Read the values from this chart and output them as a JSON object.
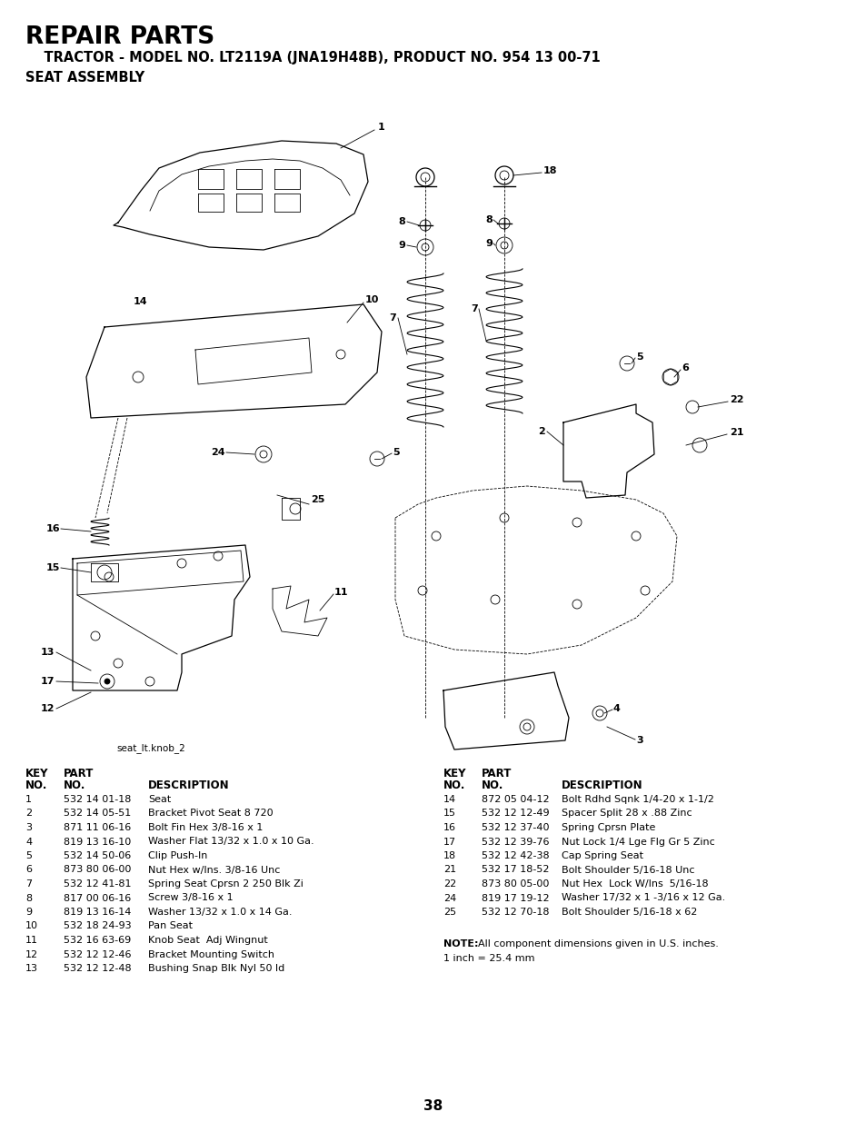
{
  "title_line1": "REPAIR PARTS",
  "title_line2": "    TRACTOR - MODEL NO. LT2119A (JNA19H48B), PRODUCT NO. 954 13 00-71",
  "title_line3": "SEAT ASSEMBLY",
  "image_label": "seat_lt.knob_2",
  "parts_left": [
    [
      "1",
      "532 14 01-18",
      "Seat"
    ],
    [
      "2",
      "532 14 05-51",
      "Bracket Pivot Seat 8 720"
    ],
    [
      "3",
      "871 11 06-16",
      "Bolt Fin Hex 3/8-16 x 1"
    ],
    [
      "4",
      "819 13 16-10",
      "Washer Flat 13/32 x 1.0 x 10 Ga."
    ],
    [
      "5",
      "532 14 50-06",
      "Clip Push-In"
    ],
    [
      "6",
      "873 80 06-00",
      "Nut Hex w/Ins. 3/8-16 Unc"
    ],
    [
      "7",
      "532 12 41-81",
      "Spring Seat Cprsn 2 250 Blk Zi"
    ],
    [
      "8",
      "817 00 06-16",
      "Screw 3/8-16 x 1"
    ],
    [
      "9",
      "819 13 16-14",
      "Washer 13/32 x 1.0 x 14 Ga."
    ],
    [
      "10",
      "532 18 24-93",
      "Pan Seat"
    ],
    [
      "11",
      "532 16 63-69",
      "Knob Seat  Adj Wingnut"
    ],
    [
      "12",
      "532 12 12-46",
      "Bracket Mounting Switch"
    ],
    [
      "13",
      "532 12 12-48",
      "Bushing Snap Blk Nyl 50 ld"
    ]
  ],
  "parts_right": [
    [
      "14",
      "872 05 04-12",
      "Bolt Rdhd Sqnk 1/4-20 x 1-1/2"
    ],
    [
      "15",
      "532 12 12-49",
      "Spacer Split 28 x .88 Zinc"
    ],
    [
      "16",
      "532 12 37-40",
      "Spring Cprsn Plate"
    ],
    [
      "17",
      "532 12 39-76",
      "Nut Lock 1/4 Lge Flg Gr 5 Zinc"
    ],
    [
      "18",
      "532 12 42-38",
      "Cap Spring Seat"
    ],
    [
      "21",
      "532 17 18-52",
      "Bolt Shoulder 5/16-18 Unc"
    ],
    [
      "22",
      "873 80 05-00",
      "Nut Hex  Lock W/Ins  5/16-18"
    ],
    [
      "24",
      "819 17 19-12",
      "Washer 17/32 x 1 -3/16 x 12 Ga."
    ],
    [
      "25",
      "532 12 70-18",
      "Bolt Shoulder 5/16-18 x 62"
    ]
  ],
  "note_line1": "NOTE:  All component dimensions given in U.S. inches.",
  "note_line2": "1 inch = 25.4 mm",
  "page_number": "38",
  "bg_color": "#ffffff",
  "text_color": "#000000"
}
